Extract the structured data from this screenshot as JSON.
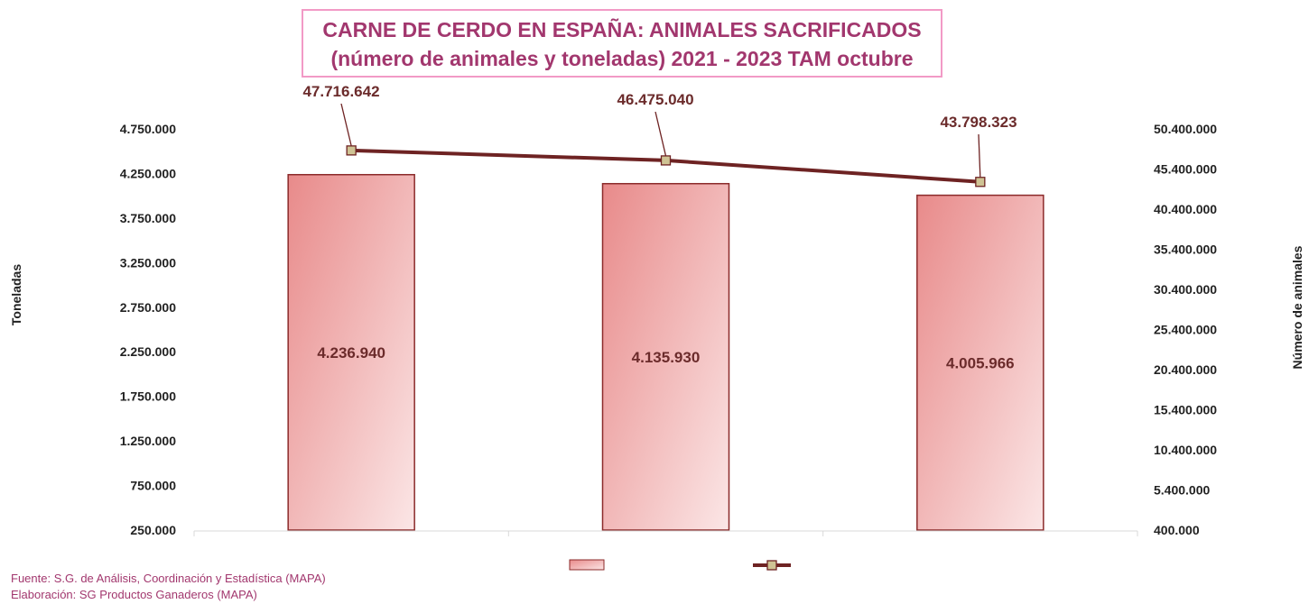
{
  "chart_data": {
    "type": "bar",
    "title": "CARNE DE CERDO EN ESPAÑA: ANIMALES SACRIFICADOS",
    "subtitle": "(número de animales y toneladas)  2021 - 2023 TAM octubre",
    "categories": [
      "",
      "",
      ""
    ],
    "series": [
      {
        "axis": "left",
        "chart_type": "bar",
        "values": [
          4236940,
          4135930,
          4005966
        ],
        "labels": [
          "4.236.940",
          "4.135.930",
          "4.005.966"
        ]
      },
      {
        "axis": "right",
        "chart_type": "line",
        "values": [
          47716642,
          46475040,
          43798323
        ],
        "labels": [
          "47.716.642",
          "46.475.040",
          "43.798.323"
        ]
      }
    ],
    "ylabel": "Toneladas",
    "y2label": "Número de animales",
    "ylim": [
      250000,
      4750000
    ],
    "y2lim": [
      400000,
      50400000
    ],
    "yticks": [
      "250.000",
      "750.000",
      "1.250.000",
      "1.750.000",
      "2.250.000",
      "2.750.000",
      "3.250.000",
      "3.750.000",
      "4.250.000",
      "4.750.000"
    ],
    "y2ticks": [
      "400.000",
      "5.400.000",
      "10.400.000",
      "15.400.000",
      "20.400.000",
      "25.400.000",
      "30.400.000",
      "35.400.000",
      "40.400.000",
      "45.400.000",
      "50.400.000"
    ],
    "grid": false,
    "legend": "bottom",
    "colors": {
      "bar_top": "#e88a8a",
      "bar_bottom": "#fbe6e6",
      "bar_border": "#8b2a2a",
      "line": "#6e2323",
      "marker": "#cfc394",
      "label": "#6b2b2b",
      "title": "#a2376e",
      "title_border": "#f29ac6"
    }
  },
  "footer": {
    "source": "Fuente: S.G. de Análisis, Coordinación y Estadística (MAPA)",
    "elaboration": "Elaboración: SG Productos Ganaderos (MAPA)"
  }
}
